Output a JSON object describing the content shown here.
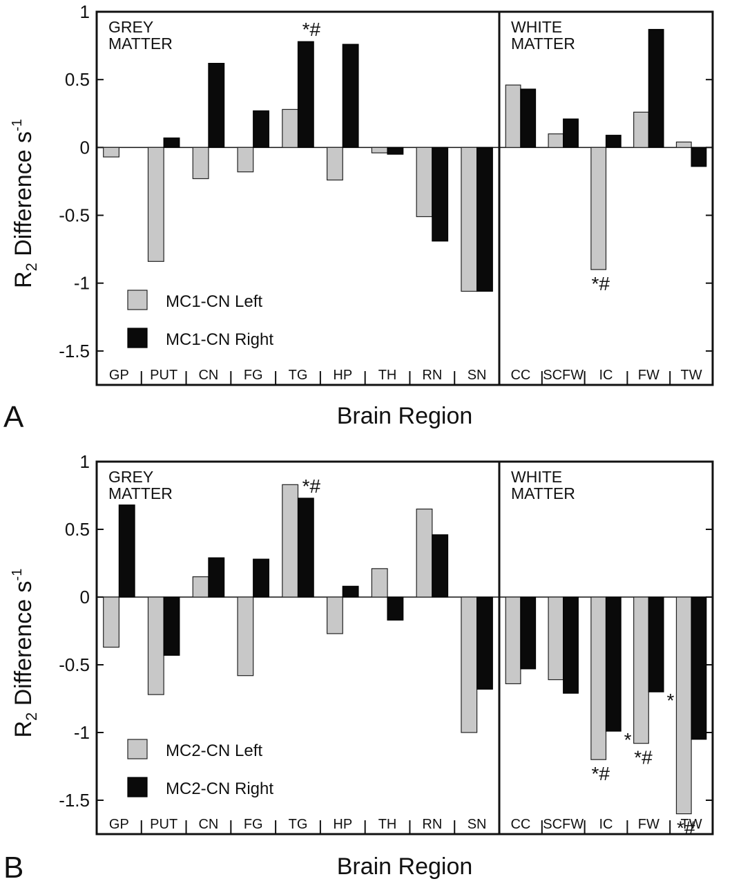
{
  "chart_data": [
    {
      "type": "bar",
      "panel_letter": "A",
      "xlabel": "Brain Region",
      "ylabel": "R2 Difference s-1",
      "ylabel_main": "R",
      "ylabel_sub": "2",
      "ylabel_mid": " Difference s",
      "ylabel_sup": "-1",
      "ylim": [
        -1.75,
        1.0
      ],
      "yticks": [
        -1.5,
        -1,
        -0.5,
        0,
        0.5,
        1
      ],
      "ytick_labels": [
        "-1.5",
        "-1",
        "-0.5",
        "0",
        "0.5",
        "1"
      ],
      "legend_position": "lower-left",
      "series": [
        {
          "name": "MC1-CN Left",
          "color": "#c8c8c8"
        },
        {
          "name": "MC1-CN Right",
          "color": "#0a0a0a"
        }
      ],
      "groups": [
        {
          "label_line1": "GREY",
          "label_line2": "MATTER",
          "categories": [
            "GP",
            "PUT",
            "CN",
            "FG",
            "TG",
            "HP",
            "TH",
            "RN",
            "SN"
          ],
          "left": [
            -0.07,
            -0.84,
            -0.23,
            -0.18,
            0.28,
            -0.24,
            -0.04,
            -0.51,
            -1.06
          ],
          "right": [
            0.0,
            0.07,
            0.62,
            0.27,
            0.78,
            0.76,
            -0.05,
            -0.69,
            -1.06
          ],
          "annotations": [
            {
              "category": "TG",
              "bar": "right",
              "text": "*#"
            }
          ]
        },
        {
          "label_line1": "WHITE",
          "label_line2": "MATTER",
          "categories": [
            "CC",
            "SCFW",
            "IC",
            "FW",
            "TW"
          ],
          "left": [
            0.46,
            0.1,
            -0.9,
            0.26,
            0.04
          ],
          "right": [
            0.43,
            0.21,
            0.09,
            0.87,
            -0.14
          ],
          "annotations": [
            {
              "category": "IC",
              "bar": "left",
              "text": "*#"
            }
          ]
        }
      ]
    },
    {
      "type": "bar",
      "panel_letter": "B",
      "xlabel": "Brain Region",
      "ylabel": "R2 Difference s-1",
      "ylabel_main": "R",
      "ylabel_sub": "2",
      "ylabel_mid": " Difference s",
      "ylabel_sup": "-1",
      "ylim": [
        -1.75,
        1.0
      ],
      "yticks": [
        -1.5,
        -1,
        -0.5,
        0,
        0.5,
        1
      ],
      "ytick_labels": [
        "-1.5",
        "-1",
        "-0.5",
        "0",
        "0.5",
        "1"
      ],
      "legend_position": "lower-left",
      "series": [
        {
          "name": "MC2-CN Left",
          "color": "#c8c8c8"
        },
        {
          "name": "MC2-CN Right",
          "color": "#0a0a0a"
        }
      ],
      "groups": [
        {
          "label_line1": "GREY",
          "label_line2": "MATTER",
          "categories": [
            "GP",
            "PUT",
            "CN",
            "FG",
            "TG",
            "HP",
            "TH",
            "RN",
            "SN"
          ],
          "left": [
            -0.37,
            -0.72,
            0.15,
            -0.58,
            0.83,
            -0.27,
            0.21,
            0.65,
            -1.0
          ],
          "right": [
            0.68,
            -0.43,
            0.29,
            0.28,
            0.73,
            0.08,
            -0.17,
            0.46,
            -0.68
          ],
          "annotations": [
            {
              "category": "TG",
              "bar": "right",
              "text": "*#"
            }
          ]
        },
        {
          "label_line1": "WHITE",
          "label_line2": "MATTER",
          "categories": [
            "CC",
            "SCFW",
            "IC",
            "FW",
            "TW"
          ],
          "left": [
            -0.64,
            -0.61,
            -1.2,
            -1.08,
            -1.6
          ],
          "right": [
            -0.53,
            -0.71,
            -0.99,
            -0.7,
            -1.05
          ],
          "annotations": [
            {
              "category": "IC",
              "bar": "left",
              "text": "*#"
            },
            {
              "category": "IC",
              "bar": "right",
              "text": "*"
            },
            {
              "category": "FW",
              "bar": "left",
              "text": "*#"
            },
            {
              "category": "FW",
              "bar": "right",
              "text": "*"
            },
            {
              "category": "TW",
              "bar": "left",
              "text": "*#"
            }
          ]
        }
      ]
    }
  ]
}
